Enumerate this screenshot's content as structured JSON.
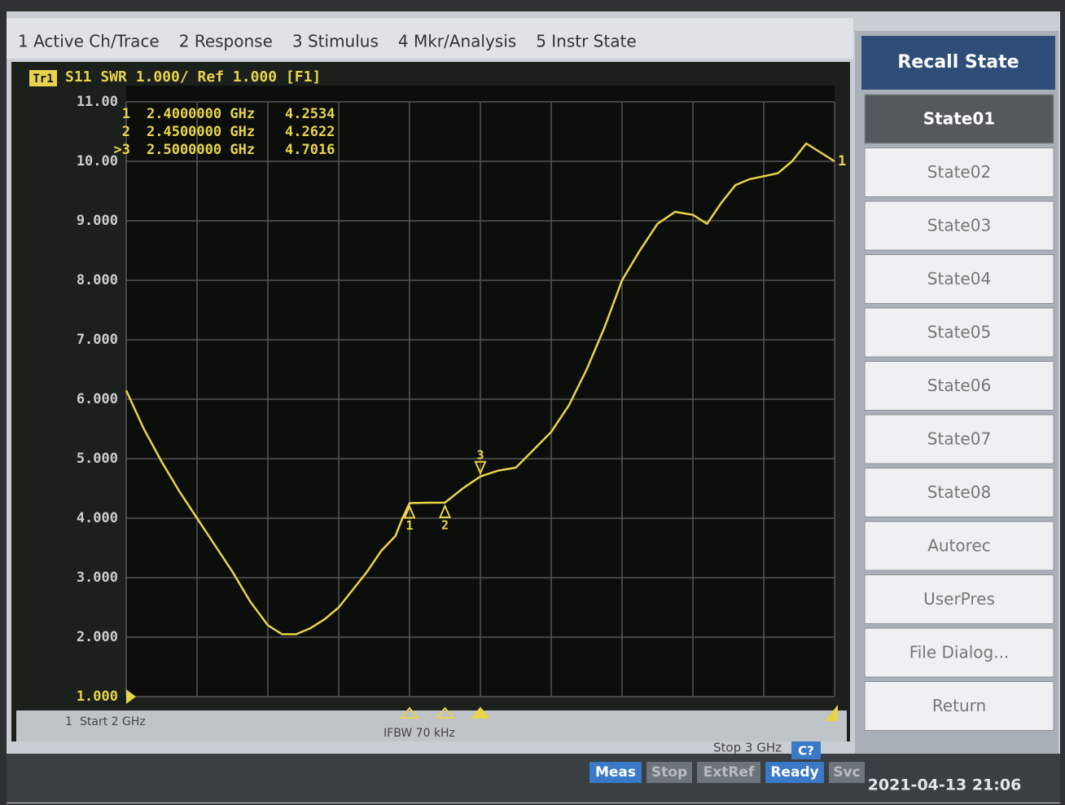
{
  "menu": [
    "1 Active Ch/Trace",
    "2 Response",
    "3 Stimulus",
    "4 Mkr/Analysis",
    "5 Instr State"
  ],
  "softkeys": {
    "title": "Recall State",
    "keys": [
      "State01",
      "State02",
      "State03",
      "State04",
      "State05",
      "State06",
      "State07",
      "State08",
      "Autorec",
      "UserPres",
      "File Dialog...",
      "Return"
    ]
  },
  "status": {
    "channel": "1",
    "ifbw": "IFBW 70 kHz",
    "cal": "C?",
    "indicators": [
      "Meas",
      "Stop",
      "ExtRef",
      "Ready",
      "Svc"
    ],
    "datetime": "2021-04-13 21:06"
  },
  "chart_data": {
    "type": "line",
    "trace_tag": "Tr1",
    "title": "S11 SWR 1.000/ Ref 1.000 [F1]",
    "start_label": "Start 2 GHz",
    "stop_label": "Stop 3 GHz",
    "trace_end_label": "1",
    "color": "#e8d44a",
    "x": [
      2.0,
      2.025,
      2.05,
      2.075,
      2.1,
      2.125,
      2.15,
      2.175,
      2.2,
      2.22,
      2.24,
      2.26,
      2.28,
      2.3,
      2.32,
      2.34,
      2.36,
      2.38,
      2.39,
      2.4,
      2.425,
      2.45,
      2.475,
      2.5,
      2.525,
      2.55,
      2.575,
      2.6,
      2.625,
      2.65,
      2.675,
      2.7,
      2.725,
      2.75,
      2.775,
      2.8,
      2.82,
      2.84,
      2.86,
      2.88,
      2.9,
      2.92,
      2.94,
      2.96,
      2.98,
      3.0
    ],
    "values": [
      6.15,
      5.5,
      4.95,
      4.45,
      4.0,
      3.55,
      3.1,
      2.6,
      2.2,
      2.05,
      2.05,
      2.15,
      2.3,
      2.5,
      2.8,
      3.1,
      3.45,
      3.7,
      4.0,
      4.2534,
      4.26,
      4.2622,
      4.5,
      4.7016,
      4.8,
      4.85,
      5.15,
      5.45,
      5.9,
      6.5,
      7.2,
      8.0,
      8.5,
      8.95,
      9.15,
      9.1,
      8.95,
      9.3,
      9.6,
      9.7,
      9.75,
      9.8,
      10.0,
      10.3,
      10.15,
      10.0
    ],
    "xlim": [
      2,
      3
    ],
    "ylim": [
      1,
      11
    ],
    "xticks": [
      2,
      2.1,
      2.2,
      2.3,
      2.4,
      2.5,
      2.6,
      2.7,
      2.8,
      2.9,
      3
    ],
    "yticks": [
      {
        "value": 11,
        "label": "11.00"
      },
      {
        "value": 10,
        "label": "10.00"
      },
      {
        "value": 9,
        "label": "9.000"
      },
      {
        "value": 8,
        "label": "8.000"
      },
      {
        "value": 7,
        "label": "7.000"
      },
      {
        "value": 6,
        "label": "6.000"
      },
      {
        "value": 5,
        "label": "5.000"
      },
      {
        "value": 4,
        "label": "4.000"
      },
      {
        "value": 3,
        "label": "3.000"
      },
      {
        "value": 2,
        "label": "2.000"
      },
      {
        "value": 1,
        "label": "1.000"
      }
    ],
    "grid": true,
    "markers": {
      "names": [
        "1",
        "2",
        "3"
      ],
      "readout_names": [
        "1",
        "2",
        ">3"
      ],
      "x": [
        2.4,
        2.45,
        2.5
      ],
      "x_labels": [
        "2.4000000 GHz",
        "2.4500000 GHz",
        "2.5000000 GHz"
      ],
      "values": [
        4.2534,
        4.2622,
        4.7016
      ]
    }
  }
}
